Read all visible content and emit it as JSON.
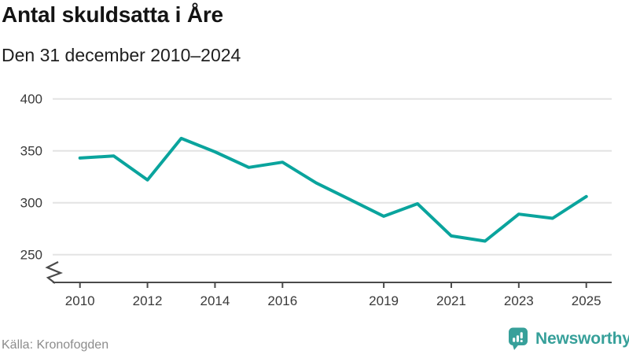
{
  "header": {
    "title": "Antal skuldsatta i Åre",
    "subtitle": "Den 31 december 2010–2024"
  },
  "chart_data": {
    "type": "line",
    "title": "Antal skuldsatta i Åre",
    "subtitle": "Den 31 december 2010–2024",
    "x": [
      2010,
      2011,
      2012,
      2013,
      2014,
      2015,
      2016,
      2017,
      2018,
      2019,
      2020,
      2021,
      2022,
      2023,
      2024,
      2025
    ],
    "values": [
      343,
      345,
      322,
      362,
      349,
      334,
      339,
      319,
      303,
      287,
      299,
      268,
      263,
      289,
      285,
      306
    ],
    "x_tick_labels": [
      "2010",
      "2012",
      "2014",
      "2016",
      "2019",
      "2021",
      "2023",
      "2025"
    ],
    "y_ticks": [
      250,
      300,
      350,
      400
    ],
    "ylim_shown": [
      250,
      400
    ],
    "y_axis_break": true,
    "grid": "horizontal",
    "legend": "none"
  },
  "footer": {
    "source": "Källa: Kronofogden",
    "brand": "Newsworthy"
  },
  "colors": {
    "line": "#0aa49d",
    "grid": "#e3e3e3",
    "axis": "#4a4a4a",
    "tick_label": "#3a3a3a",
    "brand": "#37a09a"
  }
}
